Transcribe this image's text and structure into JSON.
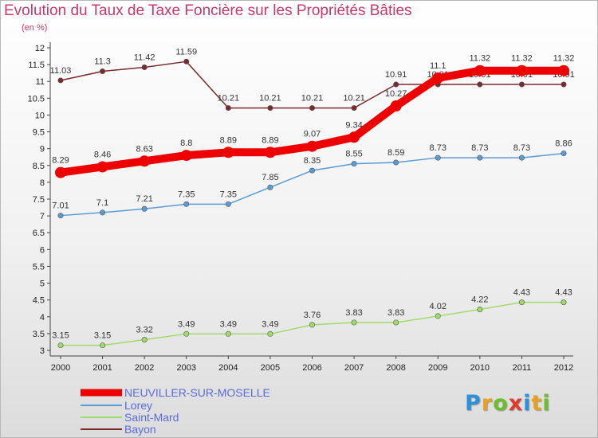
{
  "brand": {
    "letters": [
      {
        "ch": "P",
        "color": "#2f8fd8"
      },
      {
        "ch": "r",
        "color": "#e8a020"
      },
      {
        "ch": "o",
        "color": "#6cbf2a"
      },
      {
        "ch": "x",
        "color": "#e03a2a"
      },
      {
        "ch": "i",
        "color": "#2f8fd8"
      },
      {
        "ch": "t",
        "color": "#e8a020"
      },
      {
        "ch": "i",
        "color": "#6cbf2a"
      }
    ]
  },
  "chart_data": {
    "type": "line",
    "title": "Evolution du Taux de Taxe Foncière sur les Propriétés Bâties",
    "ylabel": "(en %)",
    "x": [
      "2000",
      "2001",
      "2002",
      "2003",
      "2004",
      "2005",
      "2006",
      "2007",
      "2008",
      "2009",
      "2010",
      "2011",
      "2012"
    ],
    "y_ticks": [
      "3",
      "3.5",
      "4",
      "4.5",
      "5",
      "5.5",
      "6",
      "6.5",
      "7",
      "7.5",
      "8",
      "8.5",
      "9",
      "9.5",
      "10",
      "10.5",
      "11",
      "11.5",
      "12"
    ],
    "ylim": [
      3,
      12
    ],
    "grid": false,
    "legend_position": "bottom-left",
    "series": [
      {
        "name": "NEUVILLER-SUR-MOSELLE",
        "color": "#ee0000",
        "values": [
          8.29,
          8.46,
          8.63,
          8.8,
          8.89,
          8.89,
          9.07,
          9.34,
          10.27,
          11.1,
          11.32,
          11.32,
          11.32
        ],
        "labels": [
          "8.29",
          "8.46",
          "8.63",
          "8.8",
          "8.89",
          "8.89",
          "9.07",
          "9.34",
          "10.27",
          "11.1",
          "11.32",
          "11.32",
          "11.32"
        ]
      },
      {
        "name": "Lorey",
        "color": "#5b9bd5",
        "values": [
          7.01,
          7.1,
          7.21,
          7.35,
          7.35,
          7.85,
          8.35,
          8.55,
          8.59,
          8.73,
          8.73,
          8.73,
          8.86
        ],
        "labels": [
          "7.01",
          "7.1",
          "7.21",
          "7.35",
          "7.35",
          "7.85",
          "8.35",
          "8.55",
          "8.59",
          "8.73",
          "8.73",
          "8.73",
          "8.86"
        ]
      },
      {
        "name": "Saint-Mard",
        "color": "#9fdb6a",
        "values": [
          3.15,
          3.15,
          3.32,
          3.49,
          3.49,
          3.49,
          3.76,
          3.83,
          3.83,
          4.02,
          4.22,
          4.43,
          4.43
        ],
        "labels": [
          "3.15",
          "3.15",
          "3.32",
          "3.49",
          "3.49",
          "3.49",
          "3.76",
          "3.83",
          "3.83",
          "4.02",
          "4.22",
          "4.43",
          "4.43"
        ]
      },
      {
        "name": "Bayon",
        "color": "#7b2a30",
        "values": [
          11.03,
          11.3,
          11.42,
          11.59,
          10.21,
          10.21,
          10.21,
          10.21,
          10.91,
          10.91,
          10.91,
          10.91,
          10.91
        ],
        "labels": [
          "11.03",
          "11.3",
          "11.42",
          "11.59",
          "10.21",
          "10.21",
          "10.21",
          "10.21",
          "10.91",
          "10.91",
          "10.91",
          "10.91",
          "10.91"
        ]
      }
    ]
  }
}
